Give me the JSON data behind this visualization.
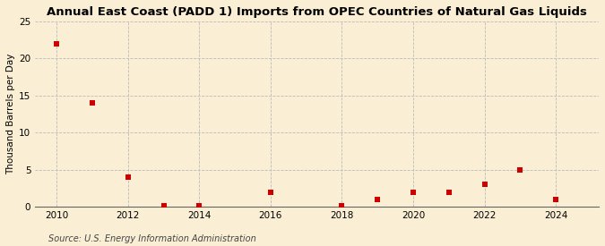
{
  "title": "Annual East Coast (PADD 1) Imports from OPEC Countries of Natural Gas Liquids",
  "ylabel": "Thousand Barrels per Day",
  "source": "Source: U.S. Energy Information Administration",
  "background_color": "#faefd4",
  "x_values": [
    2010,
    2011,
    2012,
    2013,
    2014,
    2016,
    2018,
    2019,
    2020,
    2021,
    2022,
    2023,
    2024
  ],
  "y_values": [
    22,
    14,
    4,
    0.15,
    0.15,
    2,
    0.1,
    1,
    2,
    2,
    3,
    5,
    1
  ],
  "marker_color": "#cc0000",
  "marker_size": 4,
  "xlim": [
    2009.4,
    2025.2
  ],
  "ylim": [
    0,
    25
  ],
  "yticks": [
    0,
    5,
    10,
    15,
    20,
    25
  ],
  "xticks": [
    2010,
    2012,
    2014,
    2016,
    2018,
    2020,
    2022,
    2024
  ],
  "grid_color": "#bbbbbb",
  "title_fontsize": 9.5,
  "label_fontsize": 7.5,
  "tick_fontsize": 7.5,
  "source_fontsize": 7
}
